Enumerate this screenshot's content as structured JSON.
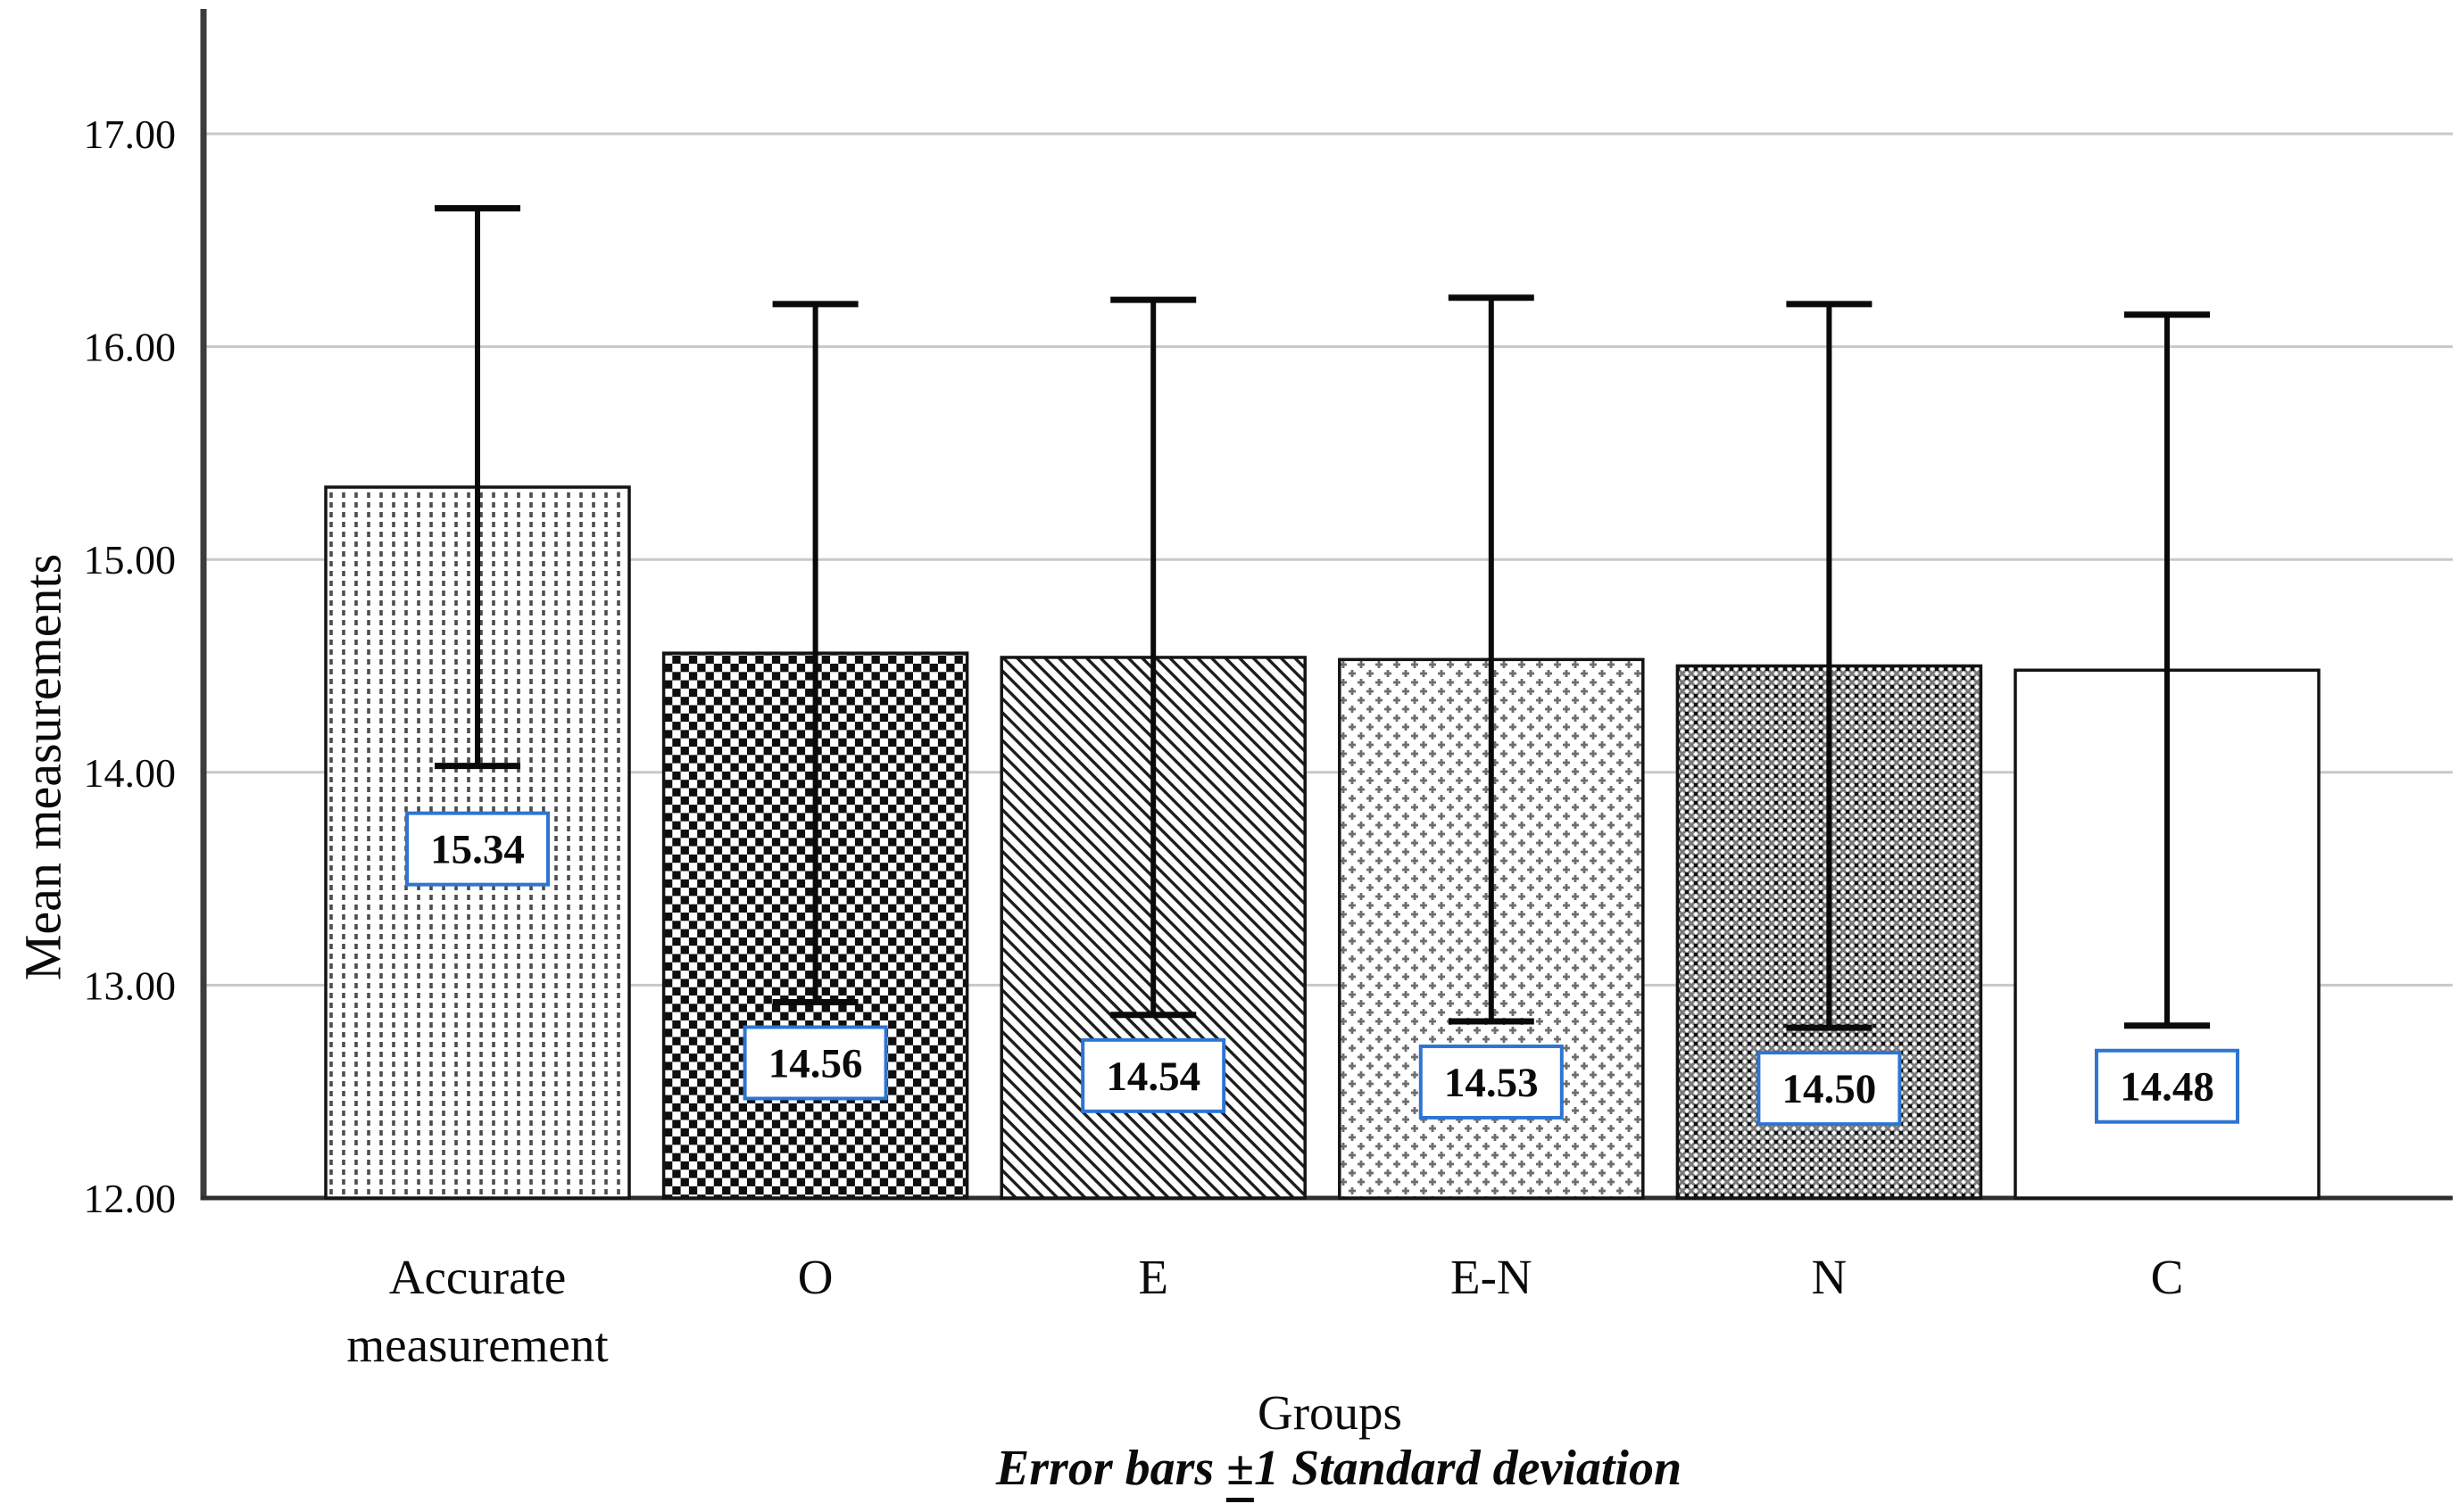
{
  "chart_data": {
    "type": "bar",
    "title": "",
    "categories": [
      "Accurate\nmeasurement",
      "O",
      "E",
      "E-N",
      "N",
      "C"
    ],
    "values": [
      15.34,
      14.56,
      14.54,
      14.53,
      14.5,
      14.48
    ],
    "value_labels": [
      "15.34",
      "14.56",
      "14.54",
      "14.53",
      "14.50",
      "14.48"
    ],
    "std_devs": [
      1.31,
      1.64,
      1.68,
      1.7,
      1.7,
      1.67
    ],
    "error_bar_note": "Error bars show mean ± 1 standard deviation",
    "patterns": [
      "dotted-vertical",
      "checkerboard",
      "diagonal-stripes",
      "plus-lattice",
      "woven-mesh",
      "plain"
    ],
    "xlabel": "Groups",
    "ylabel": "Mean measurements",
    "caption": {
      "prefix": "Error bars ",
      "pm_symbol": "±",
      "pm_number": "1",
      "suffix": " Standard deviation"
    },
    "ylim": [
      12,
      17
    ],
    "ytick_labels": [
      "12.00",
      "13.00",
      "14.00",
      "15.00",
      "16.00",
      "17.00"
    ],
    "ytick_values": [
      12,
      13,
      14,
      15,
      16,
      17
    ],
    "grid": true,
    "legend": "none",
    "colors": {
      "bar_border": "#141414",
      "error_bar": "#0a0a0a",
      "gridline": "#c8c8c8",
      "axis_line": "#3d3d3d",
      "value_box_border": "#2e75d2",
      "value_box_fill": "#ffffff",
      "text": "#0a0a0a",
      "background": "#ffffff"
    }
  }
}
